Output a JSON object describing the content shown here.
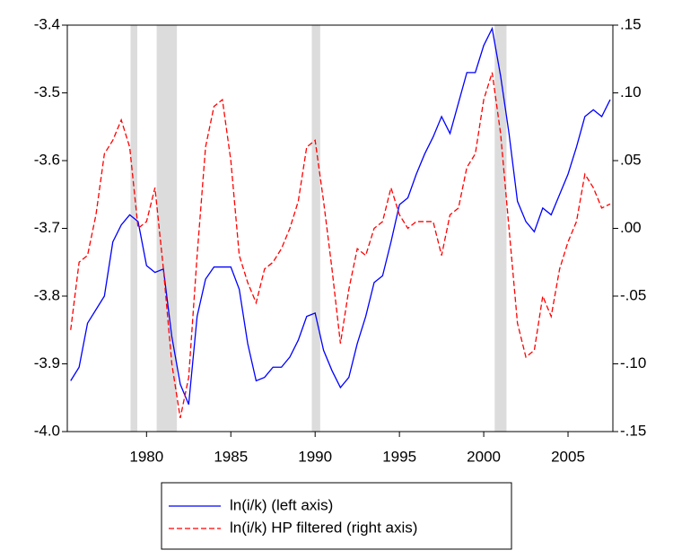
{
  "chart_data": {
    "type": "line",
    "x": [
      1975.5,
      1976,
      1976.5,
      1977,
      1977.5,
      1978,
      1978.5,
      1979,
      1979.5,
      1980,
      1980.5,
      1981,
      1981.5,
      1982,
      1982.5,
      1983,
      1983.5,
      1984,
      1984.5,
      1985,
      1985.5,
      1986,
      1986.5,
      1987,
      1987.5,
      1988,
      1988.5,
      1989,
      1989.5,
      1990,
      1990.5,
      1991,
      1991.5,
      1992,
      1992.5,
      1993,
      1993.5,
      1994,
      1994.5,
      1995,
      1995.5,
      1996,
      1996.5,
      1997,
      1997.5,
      1998,
      1998.5,
      1999,
      1999.5,
      2000,
      2000.5,
      2001,
      2001.5,
      2002,
      2002.5,
      2003,
      2003.5,
      2004,
      2004.5,
      2005,
      2005.5,
      2006,
      2006.5,
      2007,
      2007.5
    ],
    "series": [
      {
        "name": "ln(i/k) (left axis)",
        "color": "#0000ff",
        "dash": "none",
        "values": [
          -3.925,
          -3.905,
          -3.84,
          -3.82,
          -3.8,
          -3.72,
          -3.695,
          -3.68,
          -3.69,
          -3.755,
          -3.765,
          -3.76,
          -3.86,
          -3.93,
          -3.96,
          -3.83,
          -3.775,
          -3.757,
          -3.757,
          -3.757,
          -3.79,
          -3.87,
          -3.925,
          -3.92,
          -3.905,
          -3.905,
          -3.89,
          -3.865,
          -3.83,
          -3.825,
          -3.88,
          -3.91,
          -3.935,
          -3.92,
          -3.87,
          -3.83,
          -3.78,
          -3.77,
          -3.72,
          -3.665,
          -3.655,
          -3.62,
          -3.59,
          -3.565,
          -3.535,
          -3.56,
          -3.515,
          -3.47,
          -3.47,
          -3.43,
          -3.405,
          -3.475,
          -3.56,
          -3.66,
          -3.69,
          -3.705,
          -3.67,
          -3.68,
          -3.65,
          -3.62,
          -3.58,
          -3.535,
          -3.525,
          -3.535,
          -3.51
        ]
      },
      {
        "name": "ln(i/k) HP filtered (right axis)",
        "color": "#ff0000",
        "dash": "6,3",
        "axis": "y2",
        "values": [
          -0.075,
          -0.025,
          -0.02,
          0.01,
          0.055,
          0.065,
          0.08,
          0.06,
          0.0,
          0.005,
          0.03,
          -0.03,
          -0.1,
          -0.14,
          -0.11,
          -0.02,
          0.06,
          0.09,
          0.095,
          0.05,
          -0.02,
          -0.04,
          -0.055,
          -0.03,
          -0.025,
          -0.015,
          0.0,
          0.02,
          0.06,
          0.065,
          0.02,
          -0.03,
          -0.085,
          -0.045,
          -0.015,
          -0.02,
          0.0,
          0.005,
          0.03,
          0.01,
          0.0,
          0.005,
          0.005,
          0.005,
          -0.02,
          0.01,
          0.015,
          0.045,
          0.055,
          0.095,
          0.115,
          0.07,
          0.0,
          -0.07,
          -0.095,
          -0.09,
          -0.05,
          -0.065,
          -0.03,
          -0.01,
          0.005,
          0.04,
          0.03,
          0.015,
          0.018
        ]
      }
    ],
    "shaded_ranges": [
      [
        1979.05,
        1979.45
      ],
      [
        1980.6,
        1981.8
      ],
      [
        1989.8,
        1990.3
      ],
      [
        2000.65,
        2001.35
      ]
    ],
    "xlim": [
      1975.3,
      2007.66
    ],
    "xticks": [
      1980,
      1985,
      1990,
      1995,
      2000,
      2005
    ],
    "ylim": [
      -4.0,
      -3.4
    ],
    "yticks": [
      {
        "value": -4.0,
        "label": "-4.0"
      },
      -3.9,
      -3.8,
      -3.7,
      -3.6,
      -3.5,
      -3.4
    ],
    "y2lim": [
      -0.15,
      0.15
    ],
    "y2ticks": [
      {
        "value": -0.15,
        "label": "-.15"
      },
      {
        "value": -0.1,
        "label": "-.10"
      },
      {
        "value": -0.05,
        "label": "-.05"
      },
      {
        "value": 0.0,
        "label": ".00"
      },
      {
        "value": 0.05,
        "label": ".05"
      },
      {
        "value": 0.1,
        "label": ".10"
      },
      {
        "value": 0.15,
        "label": ".15"
      }
    ],
    "grid": false
  }
}
